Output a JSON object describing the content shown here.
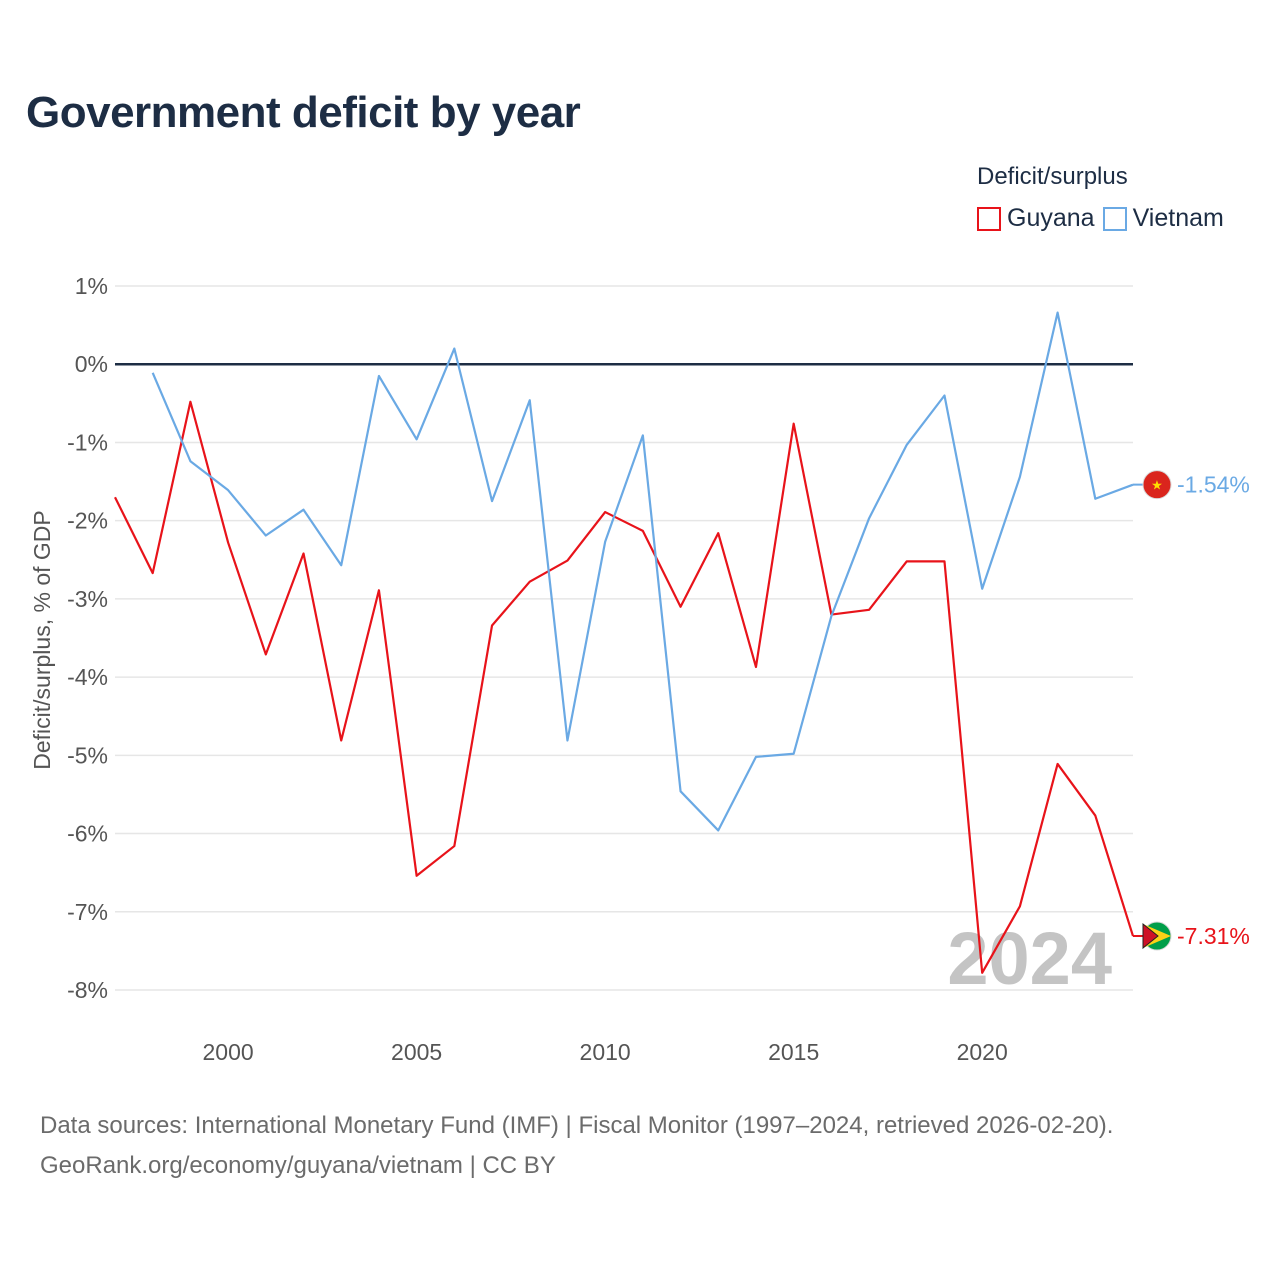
{
  "title": "Government deficit by year",
  "legend": {
    "title": "Deficit/surplus",
    "items": [
      {
        "label": "Guyana",
        "color": "#e8131a"
      },
      {
        "label": "Vietnam",
        "color": "#6aa9e4"
      }
    ]
  },
  "footer": {
    "line1": "Data sources: International Monetary Fund (IMF) | Fiscal Monitor (1997–2024, retrieved 2026-02-20).",
    "line2": "GeoRank.org/economy/guyana/vietnam | CC BY"
  },
  "watermark_year": "2024",
  "chart_data": {
    "type": "line",
    "title": "Government deficit by year",
    "xlabel": "",
    "ylabel": "Deficit/surplus, % of GDP",
    "xlim": [
      1997,
      2024
    ],
    "ylim": [
      -8,
      1
    ],
    "x_ticks": [
      2000,
      2005,
      2010,
      2015,
      2020
    ],
    "y_ticks": [
      1,
      0,
      -1,
      -2,
      -3,
      -4,
      -5,
      -6,
      -7,
      -8
    ],
    "y_tick_labels": [
      "1%",
      "0%",
      "-1%",
      "-2%",
      "-3%",
      "-4%",
      "-5%",
      "-6%",
      "-7%",
      "-8%"
    ],
    "zero_line": true,
    "series": [
      {
        "name": "Guyana",
        "color": "#e8131a",
        "end_label": "-7.31%",
        "x": [
          1997,
          1998,
          1999,
          2000,
          2001,
          2002,
          2003,
          2004,
          2005,
          2006,
          2007,
          2008,
          2009,
          2010,
          2011,
          2012,
          2013,
          2014,
          2015,
          2016,
          2017,
          2018,
          2019,
          2020,
          2021,
          2022,
          2023,
          2024
        ],
        "values": [
          -1.7,
          -2.67,
          -0.48,
          -2.28,
          -3.71,
          -2.42,
          -4.81,
          -2.89,
          -6.54,
          -6.16,
          -3.34,
          -2.78,
          -2.51,
          -1.89,
          -2.13,
          -3.1,
          -2.16,
          -3.87,
          -0.76,
          -3.2,
          -3.14,
          -2.52,
          -2.52,
          -7.78,
          -6.93,
          -5.11,
          -5.77,
          -7.31
        ]
      },
      {
        "name": "Vietnam",
        "color": "#6aa9e4",
        "end_label": "-1.54%",
        "x": [
          1998,
          1999,
          2000,
          2001,
          2002,
          2003,
          2004,
          2005,
          2006,
          2007,
          2008,
          2009,
          2010,
          2011,
          2012,
          2013,
          2014,
          2015,
          2016,
          2017,
          2018,
          2019,
          2020,
          2021,
          2022,
          2023,
          2024
        ],
        "values": [
          -0.11,
          -1.24,
          -1.61,
          -2.19,
          -1.86,
          -2.57,
          -0.15,
          -0.96,
          0.2,
          -1.75,
          -0.46,
          -4.81,
          -2.27,
          -0.91,
          -5.46,
          -5.96,
          -5.02,
          -4.98,
          -3.22,
          -1.97,
          -1.03,
          -0.4,
          -2.87,
          -1.44,
          0.66,
          -1.72,
          -1.54
        ]
      }
    ]
  }
}
